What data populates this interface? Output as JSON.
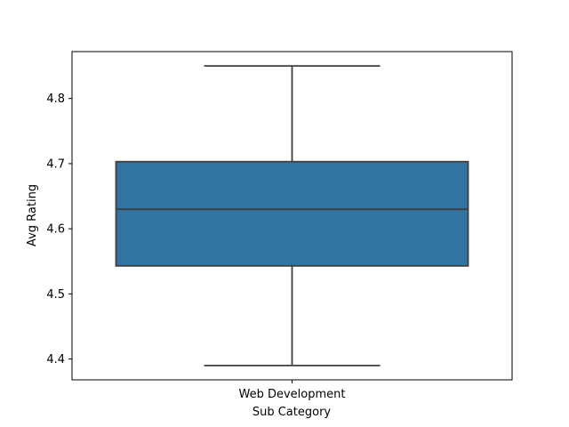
{
  "chart_data": {
    "type": "box",
    "title": "",
    "xlabel": "Sub Category",
    "ylabel": "Avg Rating",
    "categories": [
      "Web Development"
    ],
    "boxes": [
      {
        "category": "Web Development",
        "whisker_low": 4.39,
        "q1": 4.543,
        "median": 4.63,
        "q3": 4.703,
        "whisker_high": 4.85
      }
    ],
    "ylim": [
      4.368,
      4.872
    ],
    "yticks": [
      4.4,
      4.5,
      4.6,
      4.7,
      4.8
    ],
    "ytick_labels": [
      "4.4",
      "4.5",
      "4.6",
      "4.7",
      "4.8"
    ],
    "grid": false,
    "colors": {
      "box_fill": "#3274a1",
      "line": "#3f3f3f",
      "axis": "#000000"
    }
  }
}
